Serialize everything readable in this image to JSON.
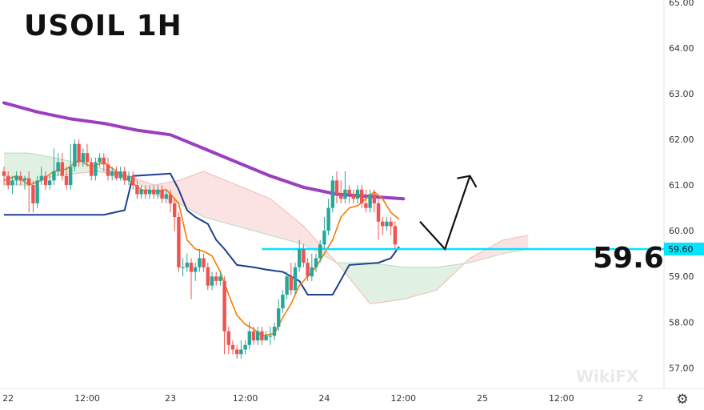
{
  "header": {
    "title": "USOIL 1H"
  },
  "annotation": {
    "target_level_text": "59.6",
    "price_tag": "59.60"
  },
  "watermark": "WikiFX",
  "colors": {
    "up": "#26a69a",
    "down": "#ef5350",
    "tenkan": "#f57c00",
    "kijun": "#1e3f8f",
    "ema": "#9c3fbf",
    "level": "#00e5ff",
    "cloud_green": "#d5ecd8",
    "cloud_red": "#fbd9d9"
  },
  "icons": {
    "settings": "gear-icon"
  },
  "chart_data": {
    "type": "candlestick",
    "ylim": [
      56.55,
      65.05
    ],
    "y_ticks": [
      "57.00",
      "58.00",
      "59.00",
      "60.00",
      "61.00",
      "62.00",
      "63.00",
      "64.00",
      "65.00"
    ],
    "x_ticks": [
      {
        "bar": 1,
        "label": "22"
      },
      {
        "bar": 20,
        "label": "12:00"
      },
      {
        "bar": 40,
        "label": "23"
      },
      {
        "bar": 58,
        "label": "12:00"
      },
      {
        "bar": 77,
        "label": "24"
      },
      {
        "bar": 96,
        "label": "12:00"
      },
      {
        "bar": 115,
        "label": "25"
      },
      {
        "bar": 134,
        "label": "12:00"
      },
      {
        "bar": 153,
        "label": "2"
      }
    ],
    "level": 59.6,
    "candles": [
      [
        61.3,
        61.2,
        61.4,
        61.0
      ],
      [
        61.2,
        61.0,
        61.3,
        60.9
      ],
      [
        61.0,
        61.1,
        61.2,
        60.8
      ],
      [
        61.1,
        61.2,
        61.3,
        61.0
      ],
      [
        61.2,
        61.1,
        61.3,
        61.0
      ],
      [
        61.1,
        61.15,
        61.2,
        60.9
      ],
      [
        61.15,
        61.0,
        61.3,
        60.4
      ],
      [
        61.0,
        60.6,
        61.1,
        60.4
      ],
      [
        60.6,
        61.1,
        61.2,
        60.5
      ],
      [
        61.1,
        61.2,
        61.4,
        61.0
      ],
      [
        61.2,
        61.0,
        61.3,
        60.9
      ],
      [
        61.0,
        61.1,
        61.2,
        60.9
      ],
      [
        61.1,
        61.3,
        61.8,
        61.0
      ],
      [
        61.3,
        61.5,
        61.7,
        61.2
      ],
      [
        61.5,
        61.2,
        61.7,
        61.1
      ],
      [
        61.2,
        61.0,
        61.4,
        60.9
      ],
      [
        61.0,
        61.4,
        61.9,
        60.9
      ],
      [
        61.4,
        61.9,
        62.0,
        61.3
      ],
      [
        61.9,
        61.5,
        62.0,
        61.4
      ],
      [
        61.5,
        61.7,
        61.8,
        61.4
      ],
      [
        61.7,
        61.5,
        61.9,
        61.4
      ],
      [
        61.5,
        61.2,
        61.6,
        61.1
      ],
      [
        61.2,
        61.5,
        61.6,
        61.1
      ],
      [
        61.5,
        61.6,
        61.7,
        61.4
      ],
      [
        61.6,
        61.45,
        61.7,
        61.3
      ],
      [
        61.45,
        61.2,
        61.6,
        61.1
      ],
      [
        61.2,
        61.3,
        61.4,
        61.1
      ],
      [
        61.3,
        61.15,
        61.4,
        61.1
      ],
      [
        61.15,
        61.3,
        61.4,
        61.1
      ],
      [
        61.3,
        61.1,
        61.4,
        61.0
      ],
      [
        61.1,
        61.2,
        61.3,
        61.0
      ],
      [
        61.2,
        61.0,
        61.3,
        60.9
      ],
      [
        61.0,
        60.8,
        61.1,
        60.7
      ],
      [
        60.8,
        60.9,
        61.0,
        60.7
      ],
      [
        60.9,
        60.8,
        61.0,
        60.7
      ],
      [
        60.8,
        60.9,
        61.0,
        60.7
      ],
      [
        60.9,
        60.8,
        61.0,
        60.7
      ],
      [
        60.8,
        60.9,
        61.0,
        60.7
      ],
      [
        60.9,
        60.7,
        61.0,
        60.6
      ],
      [
        60.7,
        60.8,
        60.9,
        60.6
      ],
      [
        60.8,
        60.6,
        60.9,
        60.4
      ],
      [
        60.6,
        60.3,
        60.7,
        60.0
      ],
      [
        60.3,
        59.2,
        60.4,
        59.1
      ],
      [
        59.2,
        59.2,
        59.4,
        59.0
      ],
      [
        59.2,
        59.3,
        59.5,
        59.1
      ],
      [
        59.3,
        59.1,
        59.4,
        58.5
      ],
      [
        59.1,
        59.2,
        59.3,
        58.9
      ],
      [
        59.2,
        59.4,
        59.6,
        59.1
      ],
      [
        59.4,
        59.2,
        59.5,
        59.1
      ],
      [
        59.2,
        58.8,
        59.3,
        58.7
      ],
      [
        58.8,
        59.0,
        59.1,
        58.7
      ],
      [
        59.0,
        58.9,
        59.1,
        58.8
      ],
      [
        58.9,
        59.0,
        59.1,
        58.8
      ],
      [
        58.9,
        57.8,
        59.0,
        57.3
      ],
      [
        57.8,
        57.5,
        57.9,
        57.3
      ],
      [
        57.5,
        57.4,
        57.6,
        57.3
      ],
      [
        57.4,
        57.3,
        57.5,
        57.2
      ],
      [
        57.3,
        57.4,
        57.6,
        57.2
      ],
      [
        57.4,
        57.5,
        57.6,
        57.3
      ],
      [
        57.5,
        57.8,
        58.0,
        57.4
      ],
      [
        57.8,
        57.6,
        57.9,
        57.5
      ],
      [
        57.6,
        57.8,
        57.9,
        57.5
      ],
      [
        57.8,
        57.6,
        57.9,
        57.5
      ],
      [
        57.6,
        57.7,
        57.8,
        57.6
      ],
      [
        57.7,
        57.7,
        57.9,
        57.5
      ],
      [
        57.7,
        57.9,
        58.0,
        57.6
      ],
      [
        57.9,
        58.3,
        58.5,
        57.8
      ],
      [
        58.3,
        58.6,
        58.7,
        58.2
      ],
      [
        58.6,
        59.0,
        59.1,
        58.5
      ],
      [
        59.0,
        58.7,
        59.3,
        58.6
      ],
      [
        58.7,
        59.2,
        59.3,
        58.6
      ],
      [
        59.2,
        59.6,
        59.8,
        59.1
      ],
      [
        59.6,
        59.3,
        59.7,
        59.2
      ],
      [
        59.3,
        59.0,
        59.4,
        58.9
      ],
      [
        59.0,
        59.2,
        59.5,
        58.9
      ],
      [
        59.2,
        59.4,
        59.5,
        59.1
      ],
      [
        59.4,
        59.7,
        59.8,
        59.3
      ],
      [
        59.7,
        60.0,
        60.3,
        59.6
      ],
      [
        60.0,
        60.5,
        60.7,
        59.9
      ],
      [
        60.5,
        61.1,
        61.2,
        60.4
      ],
      [
        61.1,
        60.8,
        61.3,
        60.6
      ],
      [
        60.8,
        60.7,
        61.1,
        60.6
      ],
      [
        60.7,
        60.9,
        61.3,
        60.6
      ],
      [
        60.9,
        60.8,
        61.0,
        60.6
      ],
      [
        60.8,
        60.7,
        60.9,
        60.6
      ],
      [
        60.7,
        60.9,
        61.0,
        60.6
      ],
      [
        60.9,
        60.6,
        61.0,
        60.5
      ],
      [
        60.6,
        60.5,
        60.9,
        60.4
      ],
      [
        60.5,
        60.8,
        60.9,
        60.4
      ],
      [
        60.8,
        60.6,
        60.9,
        60.4
      ],
      [
        60.6,
        60.2,
        60.7,
        59.8
      ],
      [
        60.2,
        60.1,
        60.3,
        59.9
      ],
      [
        60.1,
        60.2,
        60.3,
        60.0
      ],
      [
        60.2,
        60.1,
        60.3,
        59.9
      ],
      [
        60.1,
        59.7,
        60.2,
        59.6
      ]
    ],
    "tenkan": [
      [
        0,
        61.1
      ],
      [
        3,
        61.2
      ],
      [
        6,
        61.0
      ],
      [
        9,
        61.1
      ],
      [
        12,
        61.3
      ],
      [
        15,
        61.35
      ],
      [
        18,
        61.55
      ],
      [
        21,
        61.4
      ],
      [
        24,
        61.5
      ],
      [
        27,
        61.3
      ],
      [
        30,
        61.1
      ],
      [
        33,
        60.9
      ],
      [
        36,
        60.85
      ],
      [
        39,
        60.9
      ],
      [
        42,
        60.6
      ],
      [
        44,
        59.8
      ],
      [
        46,
        59.6
      ],
      [
        48,
        59.55
      ],
      [
        50,
        59.45
      ],
      [
        52,
        59.1
      ],
      [
        54,
        58.6
      ],
      [
        56,
        58.15
      ],
      [
        58,
        57.95
      ],
      [
        60,
        57.85
      ],
      [
        62,
        57.7
      ],
      [
        65,
        57.75
      ],
      [
        67,
        58.1
      ],
      [
        69,
        58.4
      ],
      [
        71,
        58.8
      ],
      [
        73,
        59.0
      ],
      [
        75,
        59.2
      ],
      [
        77,
        59.5
      ],
      [
        79,
        59.8
      ],
      [
        81,
        60.3
      ],
      [
        83,
        60.5
      ],
      [
        85,
        60.55
      ],
      [
        87,
        60.7
      ],
      [
        89,
        60.85
      ],
      [
        91,
        60.7
      ],
      [
        93,
        60.4
      ],
      [
        95,
        60.25
      ]
    ],
    "kijun": [
      [
        0,
        60.35
      ],
      [
        24,
        60.35
      ],
      [
        29,
        60.45
      ],
      [
        31,
        61.2
      ],
      [
        40,
        61.25
      ],
      [
        42,
        60.9
      ],
      [
        44,
        60.45
      ],
      [
        46,
        60.3
      ],
      [
        49,
        60.15
      ],
      [
        51,
        59.8
      ],
      [
        53,
        59.6
      ],
      [
        56,
        59.25
      ],
      [
        60,
        59.2
      ],
      [
        63,
        59.15
      ],
      [
        67,
        59.1
      ],
      [
        71,
        58.9
      ],
      [
        73,
        58.6
      ],
      [
        79,
        58.6
      ],
      [
        83,
        59.25
      ],
      [
        90,
        59.3
      ],
      [
        93,
        59.4
      ],
      [
        95,
        59.65
      ]
    ],
    "ema": [
      [
        0,
        62.8
      ],
      [
        8,
        62.6
      ],
      [
        16,
        62.45
      ],
      [
        24,
        62.35
      ],
      [
        32,
        62.2
      ],
      [
        40,
        62.1
      ],
      [
        48,
        61.8
      ],
      [
        56,
        61.5
      ],
      [
        64,
        61.2
      ],
      [
        72,
        60.95
      ],
      [
        80,
        60.8
      ],
      [
        88,
        60.75
      ],
      [
        96,
        60.7
      ]
    ],
    "cloud_a": [
      [
        0,
        61.7
      ],
      [
        6,
        61.7
      ],
      [
        12,
        61.6
      ],
      [
        22,
        61.4
      ],
      [
        30,
        61.2
      ],
      [
        36,
        60.8
      ],
      [
        42,
        60.6
      ],
      [
        48,
        60.3
      ],
      [
        56,
        60.1
      ],
      [
        64,
        59.9
      ],
      [
        72,
        59.7
      ],
      [
        80,
        59.3
      ],
      [
        88,
        59.3
      ],
      [
        96,
        59.2
      ],
      [
        104,
        59.2
      ],
      [
        112,
        59.3
      ],
      [
        120,
        59.5
      ],
      [
        126,
        59.6
      ]
    ],
    "cloud_b": [
      [
        0,
        61.0
      ],
      [
        6,
        61.0
      ],
      [
        12,
        61.2
      ],
      [
        22,
        61.3
      ],
      [
        30,
        61.2
      ],
      [
        36,
        61.0
      ],
      [
        42,
        61.1
      ],
      [
        48,
        61.3
      ],
      [
        56,
        61.0
      ],
      [
        64,
        60.7
      ],
      [
        72,
        60.1
      ],
      [
        80,
        59.3
      ],
      [
        88,
        58.4
      ],
      [
        96,
        58.5
      ],
      [
        104,
        58.7
      ],
      [
        112,
        59.4
      ],
      [
        120,
        59.8
      ],
      [
        126,
        59.9
      ]
    ],
    "arrow": [
      [
        100,
        60.2
      ],
      [
        106,
        59.6
      ],
      [
        112,
        61.2
      ]
    ]
  }
}
